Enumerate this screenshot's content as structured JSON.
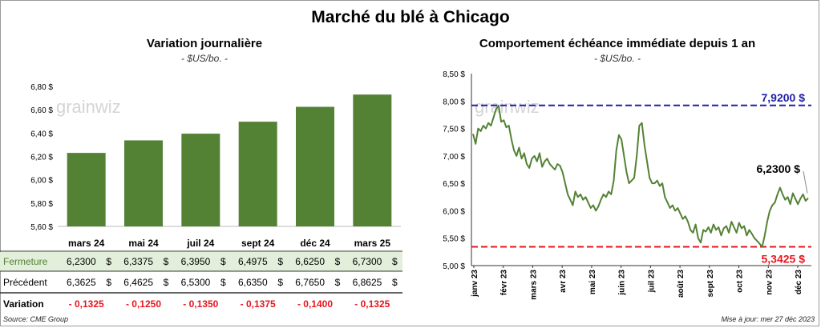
{
  "title": "Marché du blé à Chicago",
  "left_panel": {
    "title": "Variation  journalière",
    "unit": "- $US/bo. -",
    "watermark": "grainwiz",
    "rows": [
      {
        "label": "Fermeture",
        "values": [
          "6,2300",
          "6,3375",
          "6,3950",
          "6,4975",
          "6,6250",
          "6,7300"
        ]
      },
      {
        "label": "Précédent",
        "values": [
          "6,3625",
          "6,4625",
          "6,5300",
          "6,6350",
          "6,7650",
          "6,8625"
        ]
      },
      {
        "label": "Variation",
        "values": [
          "- 0,1325",
          "- 0,1250",
          "- 0,1350",
          "- 0,1375",
          "- 0,1400",
          "- 0,1325"
        ]
      }
    ],
    "currency": "$"
  },
  "right_panel": {
    "title": "Comportement  échéance immédiate depuis 1 an",
    "unit": "- $US/bo. -",
    "watermark": "grainwiz",
    "high_label": "7,9200 $",
    "low_label": "5,3425 $",
    "last_label": "6,2300 $"
  },
  "footer": {
    "source": "Source: CME Group",
    "updated": "Mise à jour: mer 27 déc 2023"
  },
  "colors": {
    "bar": "#548235",
    "row_highlight": "#e2efda",
    "line": "#548235",
    "high": "#1f1fa8",
    "low": "#e8141e",
    "negative": "#e8141e"
  },
  "chart_data": [
    {
      "type": "bar",
      "title": "Variation  journalière",
      "categories": [
        "mars 24",
        "mai 24",
        "juil 24",
        "sept 24",
        "déc 24",
        "mars 25"
      ],
      "values": [
        6.23,
        6.3375,
        6.395,
        6.4975,
        6.625,
        6.73
      ],
      "ylim": [
        5.6,
        6.8
      ],
      "yticks": [
        5.6,
        5.8,
        6.0,
        6.2,
        6.4,
        6.6,
        6.8
      ],
      "ytick_labels": [
        "5,60 $",
        "5,80 $",
        "6,00 $",
        "6,20 $",
        "6,40 $",
        "6,60 $",
        "6,80 $"
      ]
    },
    {
      "type": "line",
      "title": "Comportement  échéance immédiate depuis 1 an",
      "ylim": [
        5.0,
        8.5
      ],
      "yticks": [
        5.0,
        5.5,
        6.0,
        6.5,
        7.0,
        7.5,
        8.0,
        8.5
      ],
      "ytick_labels": [
        "5,00 $",
        "5,50 $",
        "6,00 $",
        "6,50 $",
        "7,00 $",
        "7,50 $",
        "8,00 $",
        "8,50 $"
      ],
      "x_labels": [
        "janv 23",
        "févr 23",
        "mars 23",
        "avr 23",
        "mai 23",
        "juin 23",
        "juil 23",
        "août 23",
        "sept 23",
        "oct 23",
        "nov 23",
        "déc 23"
      ],
      "high": 7.92,
      "low": 5.3425,
      "last": 6.23,
      "values": [
        7.4,
        7.22,
        7.5,
        7.45,
        7.55,
        7.5,
        7.6,
        7.55,
        7.7,
        7.85,
        7.92,
        7.62,
        7.65,
        7.52,
        7.55,
        7.3,
        7.1,
        7.0,
        7.15,
        6.95,
        7.05,
        6.85,
        6.78,
        6.95,
        7.0,
        6.9,
        7.05,
        6.8,
        6.9,
        6.95,
        6.85,
        6.8,
        6.75,
        6.85,
        6.82,
        6.7,
        6.5,
        6.3,
        6.2,
        6.1,
        6.35,
        6.25,
        6.3,
        6.2,
        6.25,
        6.15,
        6.05,
        6.1,
        6.0,
        6.08,
        6.2,
        6.3,
        6.25,
        6.35,
        6.3,
        6.55,
        7.1,
        7.38,
        7.3,
        7.0,
        6.7,
        6.5,
        6.55,
        6.6,
        7.0,
        7.55,
        7.6,
        7.2,
        6.9,
        6.6,
        6.5,
        6.5,
        6.55,
        6.45,
        6.5,
        6.25,
        6.15,
        6.05,
        6.1,
        6.0,
        6.05,
        5.95,
        5.85,
        5.9,
        5.8,
        5.65,
        5.6,
        5.75,
        5.5,
        5.42,
        5.65,
        5.62,
        5.7,
        5.6,
        5.75,
        5.65,
        5.7,
        5.55,
        5.68,
        5.72,
        5.6,
        5.8,
        5.7,
        5.6,
        5.78,
        5.68,
        5.72,
        5.55,
        5.65,
        5.58,
        5.5,
        5.45,
        5.4,
        5.34,
        5.55,
        5.8,
        6.0,
        6.1,
        6.15,
        6.3,
        6.42,
        6.3,
        6.2,
        6.25,
        6.12,
        6.32,
        6.22,
        6.12,
        6.22,
        6.3,
        6.18,
        6.23
      ]
    }
  ]
}
